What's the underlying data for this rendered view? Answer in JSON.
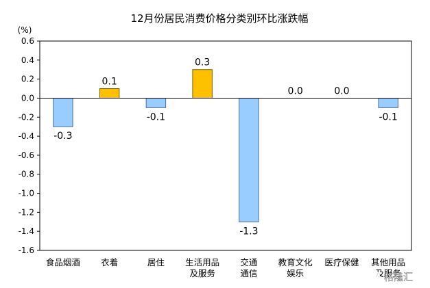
{
  "chart_data": {
    "type": "bar",
    "title": "12月份居民消费价格分类别环比涨跌幅",
    "unit": "(%)",
    "xlabel": "",
    "ylabel": "",
    "ylim": [
      -1.6,
      0.6
    ],
    "yticks": [
      "0.6",
      "0.4",
      "0.2",
      "0.0",
      "-0.2",
      "-0.4",
      "-0.6",
      "-0.8",
      "-1.0",
      "-1.2",
      "-1.4",
      "-1.6"
    ],
    "categories": [
      [
        "食品烟酒"
      ],
      [
        "衣着"
      ],
      [
        "居住"
      ],
      [
        "生活用品",
        "及服务"
      ],
      [
        "交通",
        "通信"
      ],
      [
        "教育文化",
        "娱乐"
      ],
      [
        "医疗保健"
      ],
      [
        "其他用品",
        "及服务"
      ]
    ],
    "values": [
      -0.3,
      0.1,
      -0.1,
      0.3,
      -1.3,
      0.0,
      0.0,
      -0.1
    ],
    "value_labels": [
      "-0.3",
      "0.1",
      "-0.1",
      "0.3",
      "-1.3",
      "0.0",
      "0.0",
      "-0.1"
    ],
    "colors": {
      "positive": "#FFC000",
      "positive_stroke": "#7F6000",
      "negative": "#99CCFF",
      "negative_stroke": "#4A6FA5",
      "axis": "#000000"
    },
    "grid": false,
    "legend": "none"
  },
  "watermark": "格隆汇"
}
